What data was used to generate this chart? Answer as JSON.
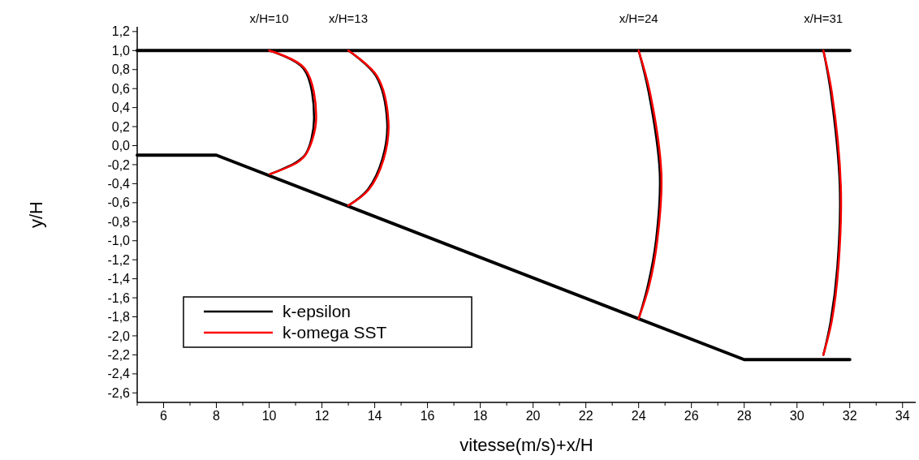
{
  "chart_data": {
    "type": "line",
    "xlabel": "vitesse(m/s)+x/H",
    "ylabel": "y/H",
    "xlim": [
      5,
      34.5
    ],
    "ylim": [
      -2.7,
      1.25
    ],
    "xticks": [
      {
        "value": 5,
        "label": null
      },
      6,
      {
        "value": 7,
        "label": null
      },
      8,
      {
        "value": 9,
        "label": null
      },
      10,
      {
        "value": 11,
        "label": null
      },
      12,
      {
        "value": 13,
        "label": null
      },
      14,
      {
        "value": 15,
        "label": null
      },
      16,
      {
        "value": 17,
        "label": null
      },
      18,
      {
        "value": 19,
        "label": null
      },
      20,
      {
        "value": 21,
        "label": null
      },
      22,
      {
        "value": 23,
        "label": null
      },
      24,
      {
        "value": 25,
        "label": null
      },
      26,
      {
        "value": 27,
        "label": null
      },
      28,
      {
        "value": 29,
        "label": null
      },
      30,
      {
        "value": 31,
        "label": null
      },
      32,
      {
        "value": 33,
        "label": null
      },
      34
    ],
    "yticks": [
      {
        "value": -2.6,
        "label": "-2,6"
      },
      {
        "value": -2.4,
        "label": "-2,4"
      },
      {
        "value": -2.2,
        "label": "-2,2"
      },
      {
        "value": -2.0,
        "label": "-2,0"
      },
      {
        "value": -1.8,
        "label": "-1,8"
      },
      {
        "value": -1.6,
        "label": "-1,6"
      },
      {
        "value": -1.4,
        "label": "-1,4"
      },
      {
        "value": -1.2,
        "label": "-1,2"
      },
      {
        "value": -1.0,
        "label": "-1,0"
      },
      {
        "value": -0.8,
        "label": "-0,8"
      },
      {
        "value": -0.6,
        "label": "-0,6"
      },
      {
        "value": -0.4,
        "label": "-0,4"
      },
      {
        "value": -0.2,
        "label": "-0,2"
      },
      {
        "value": 0,
        "label": "0,0"
      },
      {
        "value": 0.2,
        "label": "0,2"
      },
      {
        "value": 0.4,
        "label": "0,4"
      },
      {
        "value": 0.6,
        "label": "0,6"
      },
      {
        "value": 0.8,
        "label": "0,8"
      },
      {
        "value": 1.0,
        "label": "1,0"
      },
      {
        "value": 1.2,
        "label": "1,2"
      }
    ],
    "grid": false,
    "legend": "bottom left",
    "line_style": "solid",
    "marker": "none",
    "annotations": [
      "x/H=10",
      "x/H=13",
      "x/H=24",
      "x/H=31"
    ],
    "series": [
      {
        "color": "#000000",
        "x": [
          5,
          32
        ],
        "values": [
          1.0,
          1.0
        ]
      },
      {
        "color": "#000000",
        "x": [
          5,
          8,
          28,
          32
        ],
        "values": [
          -0.1,
          -0.1,
          -2.25,
          -2.25
        ]
      },
      {
        "name": "k-epsilon",
        "color": "#000000",
        "x": [
          10,
          11.3,
          11.7,
          11.4,
          11.05,
          10.03,
          null,
          13,
          14.05,
          14.47,
          14.29,
          13.74,
          13,
          null,
          24,
          24.38,
          24.8,
          24.66,
          24.35,
          24,
          null,
          31,
          31.28,
          31.62,
          31.53,
          31.28,
          31
        ],
        "values": [
          1.0,
          0.81,
          0.28,
          -0.08,
          -0.17,
          -0.3,
          null,
          1.0,
          0.73,
          0.25,
          -0.14,
          -0.46,
          -0.63,
          null,
          1.0,
          0.56,
          -0.29,
          -0.99,
          -1.47,
          -1.82,
          null,
          1.0,
          0.56,
          -0.42,
          -1.27,
          -1.84,
          -2.2
        ]
      },
      {
        "name": "k-omega SST",
        "color": "#ff0000",
        "x": [
          10,
          11.35,
          11.78,
          11.42,
          11.1,
          10.03,
          null,
          13,
          14.09,
          14.52,
          14.34,
          13.78,
          13,
          null,
          24,
          24.43,
          24.86,
          24.71,
          24.4,
          24,
          null,
          31,
          31.32,
          31.66,
          31.57,
          31.32,
          31
        ],
        "values": [
          1.0,
          0.81,
          0.28,
          -0.08,
          -0.17,
          -0.3,
          null,
          1.0,
          0.73,
          0.25,
          -0.14,
          -0.46,
          -0.63,
          null,
          1.0,
          0.56,
          -0.29,
          -0.99,
          -1.47,
          -1.82,
          null,
          1.0,
          0.56,
          -0.42,
          -1.27,
          -1.84,
          -2.2
        ]
      }
    ]
  }
}
